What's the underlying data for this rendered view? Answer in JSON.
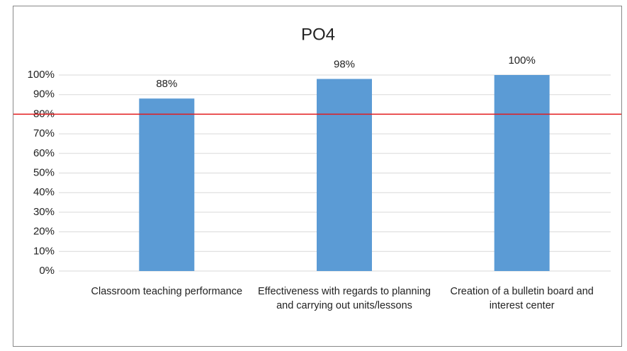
{
  "chart_data": {
    "type": "bar",
    "title": "PO4",
    "categories": [
      "Classroom teaching performance",
      "Effectiveness with regards to planning and carrying out units/lessons",
      "Creation of a bulletin board and interest center"
    ],
    "values": [
      88,
      98,
      100
    ],
    "value_labels": [
      "88%",
      "98%",
      "100%"
    ],
    "color": "#5b9bd5",
    "ylim": [
      0,
      100
    ],
    "yticks": [
      {
        "value": 0,
        "label": "0%"
      },
      {
        "value": 10,
        "label": "10%"
      },
      {
        "value": 20,
        "label": "20%"
      },
      {
        "value": 30,
        "label": "30%"
      },
      {
        "value": 40,
        "label": "40%"
      },
      {
        "value": 50,
        "label": "50%"
      },
      {
        "value": 60,
        "label": "60%"
      },
      {
        "value": 70,
        "label": "70%"
      },
      {
        "value": 80,
        "label": "80%"
      },
      {
        "value": 90,
        "label": "90%"
      },
      {
        "value": 100,
        "label": "100%"
      }
    ],
    "grid": true,
    "threshold": 80,
    "threshold_color": "#e31a1c"
  }
}
